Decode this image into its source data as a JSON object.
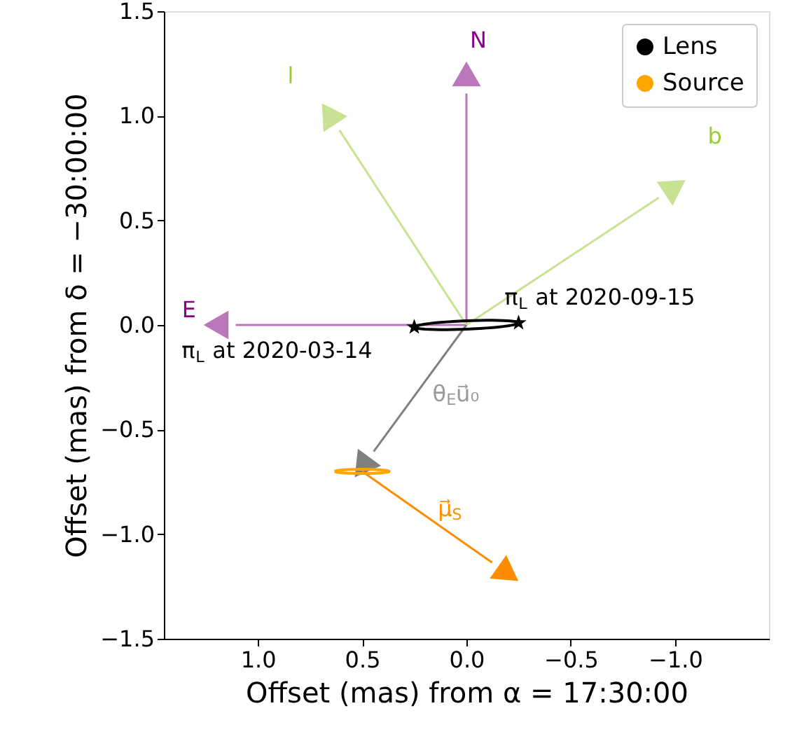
{
  "chart_data": {
    "type": "line",
    "xlabel": "Offset (mas) from α =  17:30:00",
    "ylabel": "Offset (mas) from δ =  −30:00:00",
    "xlim": [
      1.45,
      -1.45
    ],
    "xticks": [
      {
        "value": 1.0,
        "label": "1.0"
      },
      0.5,
      {
        "value": 0.0,
        "label": "0.0"
      },
      -0.5,
      {
        "value": -1.0,
        "label": "−1.0"
      }
    ],
    "ylim": [
      -1.5,
      1.5
    ],
    "yticks": [
      -1.5,
      {
        "value": -1.0,
        "label": "−1.0"
      },
      -0.5,
      {
        "value": 0.0,
        "label": "0.0"
      },
      0.5,
      {
        "value": 1.0,
        "label": "1.0"
      },
      1.5
    ],
    "grid": false,
    "legend": "top right",
    "series": [
      {
        "name": "Lens",
        "color": "#000000"
      },
      {
        "name": "Source",
        "color": "#ffa500"
      },
      {
        "type": "scatter",
        "marker": "star",
        "color": "#000000",
        "x": [
          0.25,
          -0.25
        ],
        "values": [
          -0.01,
          0.01
        ]
      }
    ],
    "annotations": [
      "N",
      "l",
      "b",
      "E",
      {
        "text": "π$_{L}$ at 2020-09-15",
        "x": -0.25,
        "y": 0.01
      },
      {
        "text": "π$_{L}$ at 2020-03-14",
        "x": 0.25,
        "y": -0.01
      },
      "θ$_{E}$u⃗₀",
      "μ⃗$_{S}$"
    ]
  }
}
